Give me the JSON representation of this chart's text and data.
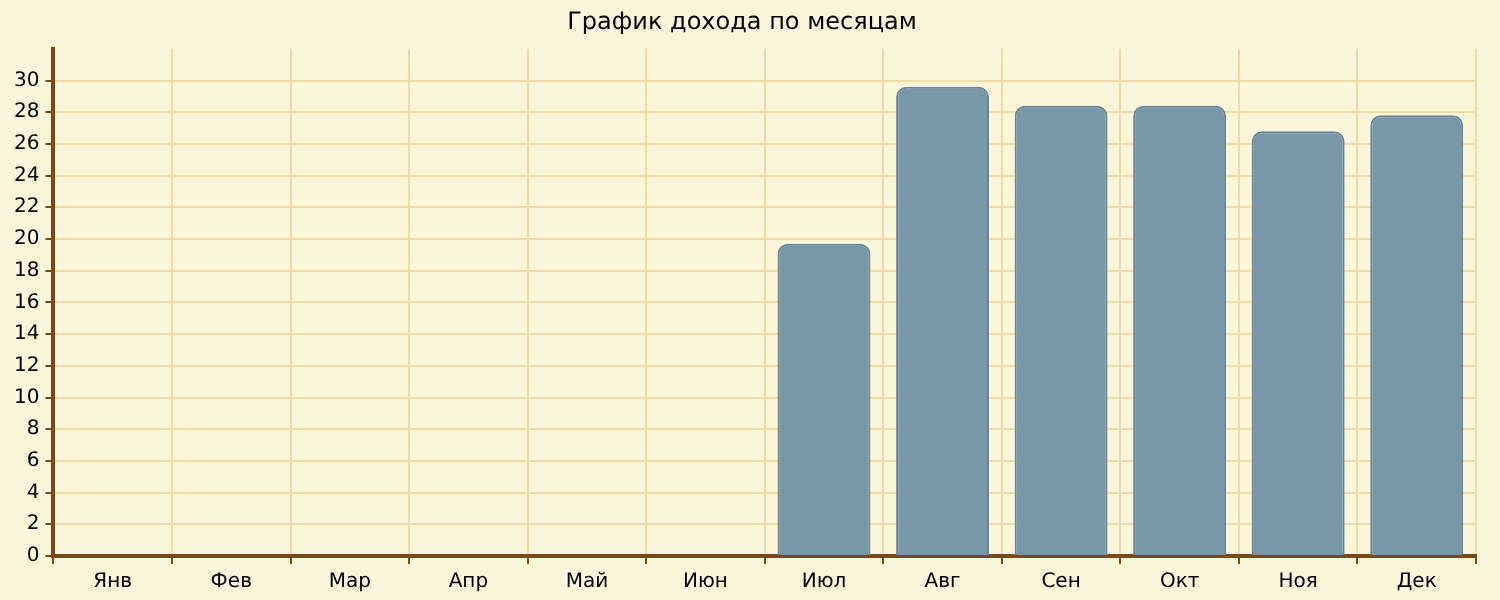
{
  "chart_data": {
    "type": "bar",
    "title": "График дохода по месяцам",
    "categories": [
      "Янв",
      "Фев",
      "Мар",
      "Апр",
      "Май",
      "Июн",
      "Июл",
      "Авг",
      "Сен",
      "Окт",
      "Ноя",
      "Дек"
    ],
    "values": [
      0,
      0,
      0,
      0,
      0,
      0,
      19.7,
      29.6,
      28.4,
      28.4,
      26.8,
      27.8
    ],
    "color": "#7a97a8",
    "ylim": [
      0,
      32
    ],
    "yticks": [
      0,
      2,
      4,
      6,
      8,
      10,
      12,
      14,
      16,
      18,
      20,
      22,
      24,
      26,
      28,
      30
    ],
    "grid": true
  }
}
